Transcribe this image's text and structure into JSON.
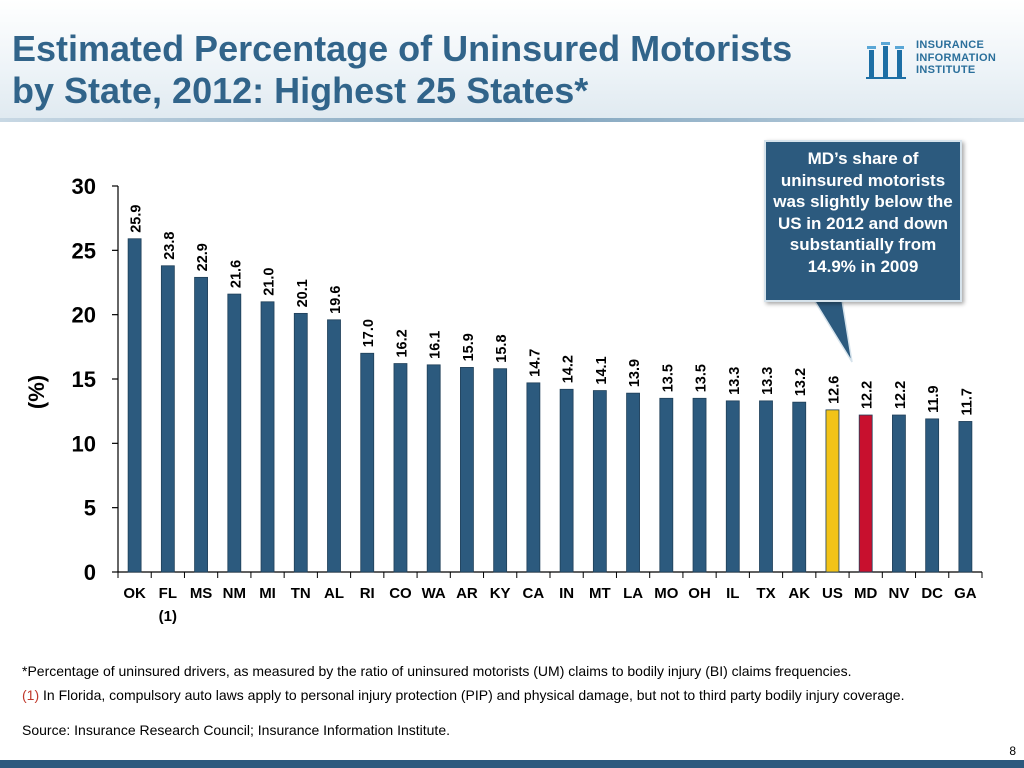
{
  "header": {
    "title_line1": "Estimated Percentage of Uninsured Motorists",
    "title_line2": "by State, 2012: Highest 25 States*"
  },
  "logo": {
    "line1": "INSURANCE",
    "line2": "INFORMATION",
    "line3": "INSTITUTE"
  },
  "callout": {
    "text": "MD’s share of uninsured motorists was slightly below the US in 2012 and down substantially from 14.9% in 2009"
  },
  "chart_data": {
    "type": "bar",
    "title": "Estimated Percentage of Uninsured Motorists by State, 2012: Highest 25 States*",
    "ylabel": "(%)",
    "xlabel": "",
    "ylim": [
      0,
      30
    ],
    "yticks": [
      0,
      5,
      10,
      15,
      20,
      25,
      30
    ],
    "categories": [
      "OK",
      "FL",
      "MS",
      "NM",
      "MI",
      "TN",
      "AL",
      "RI",
      "CO",
      "WA",
      "AR",
      "KY",
      "CA",
      "IN",
      "MT",
      "LA",
      "MO",
      "OH",
      "IL",
      "TX",
      "AK",
      "US",
      "MD",
      "NV",
      "DC",
      "GA"
    ],
    "category_notes": {
      "FL": "(1)"
    },
    "values": [
      25.9,
      23.8,
      22.9,
      21.6,
      21.0,
      20.1,
      19.6,
      17.0,
      16.2,
      16.1,
      15.9,
      15.8,
      14.7,
      14.2,
      14.1,
      13.9,
      13.5,
      13.5,
      13.3,
      13.3,
      13.2,
      12.6,
      12.2,
      12.2,
      11.9,
      11.7
    ],
    "value_labels": [
      "25.9",
      "23.8",
      "22.9",
      "21.6",
      "21.0",
      "20.1",
      "19.6",
      "17.0",
      "16.2",
      "16.1",
      "15.9",
      "15.8",
      "14.7",
      "14.2",
      "14.1",
      "13.9",
      "13.5",
      "13.5",
      "13.3",
      "13.3",
      "13.2",
      "12.6",
      "12.2",
      "12.2",
      "11.9",
      "11.7"
    ],
    "colors": {
      "default": "#2c5a7e",
      "US": "#f2c318",
      "MD": "#c8102e"
    },
    "grid": false,
    "legend": "none"
  },
  "footnotes": {
    "star": "*Percentage of uninsured drivers, as measured by the ratio of uninsured motorists (UM) claims to bodily injury (BI) claims frequencies.",
    "note1_mark": "(1)",
    "note1_text": "In Florida, compulsory auto laws apply to personal injury protection (PIP) and physical damage, but not to third party bodily injury coverage.",
    "source": "Source: Insurance Research Council; Insurance Information Institute."
  },
  "page": {
    "number": "8"
  }
}
